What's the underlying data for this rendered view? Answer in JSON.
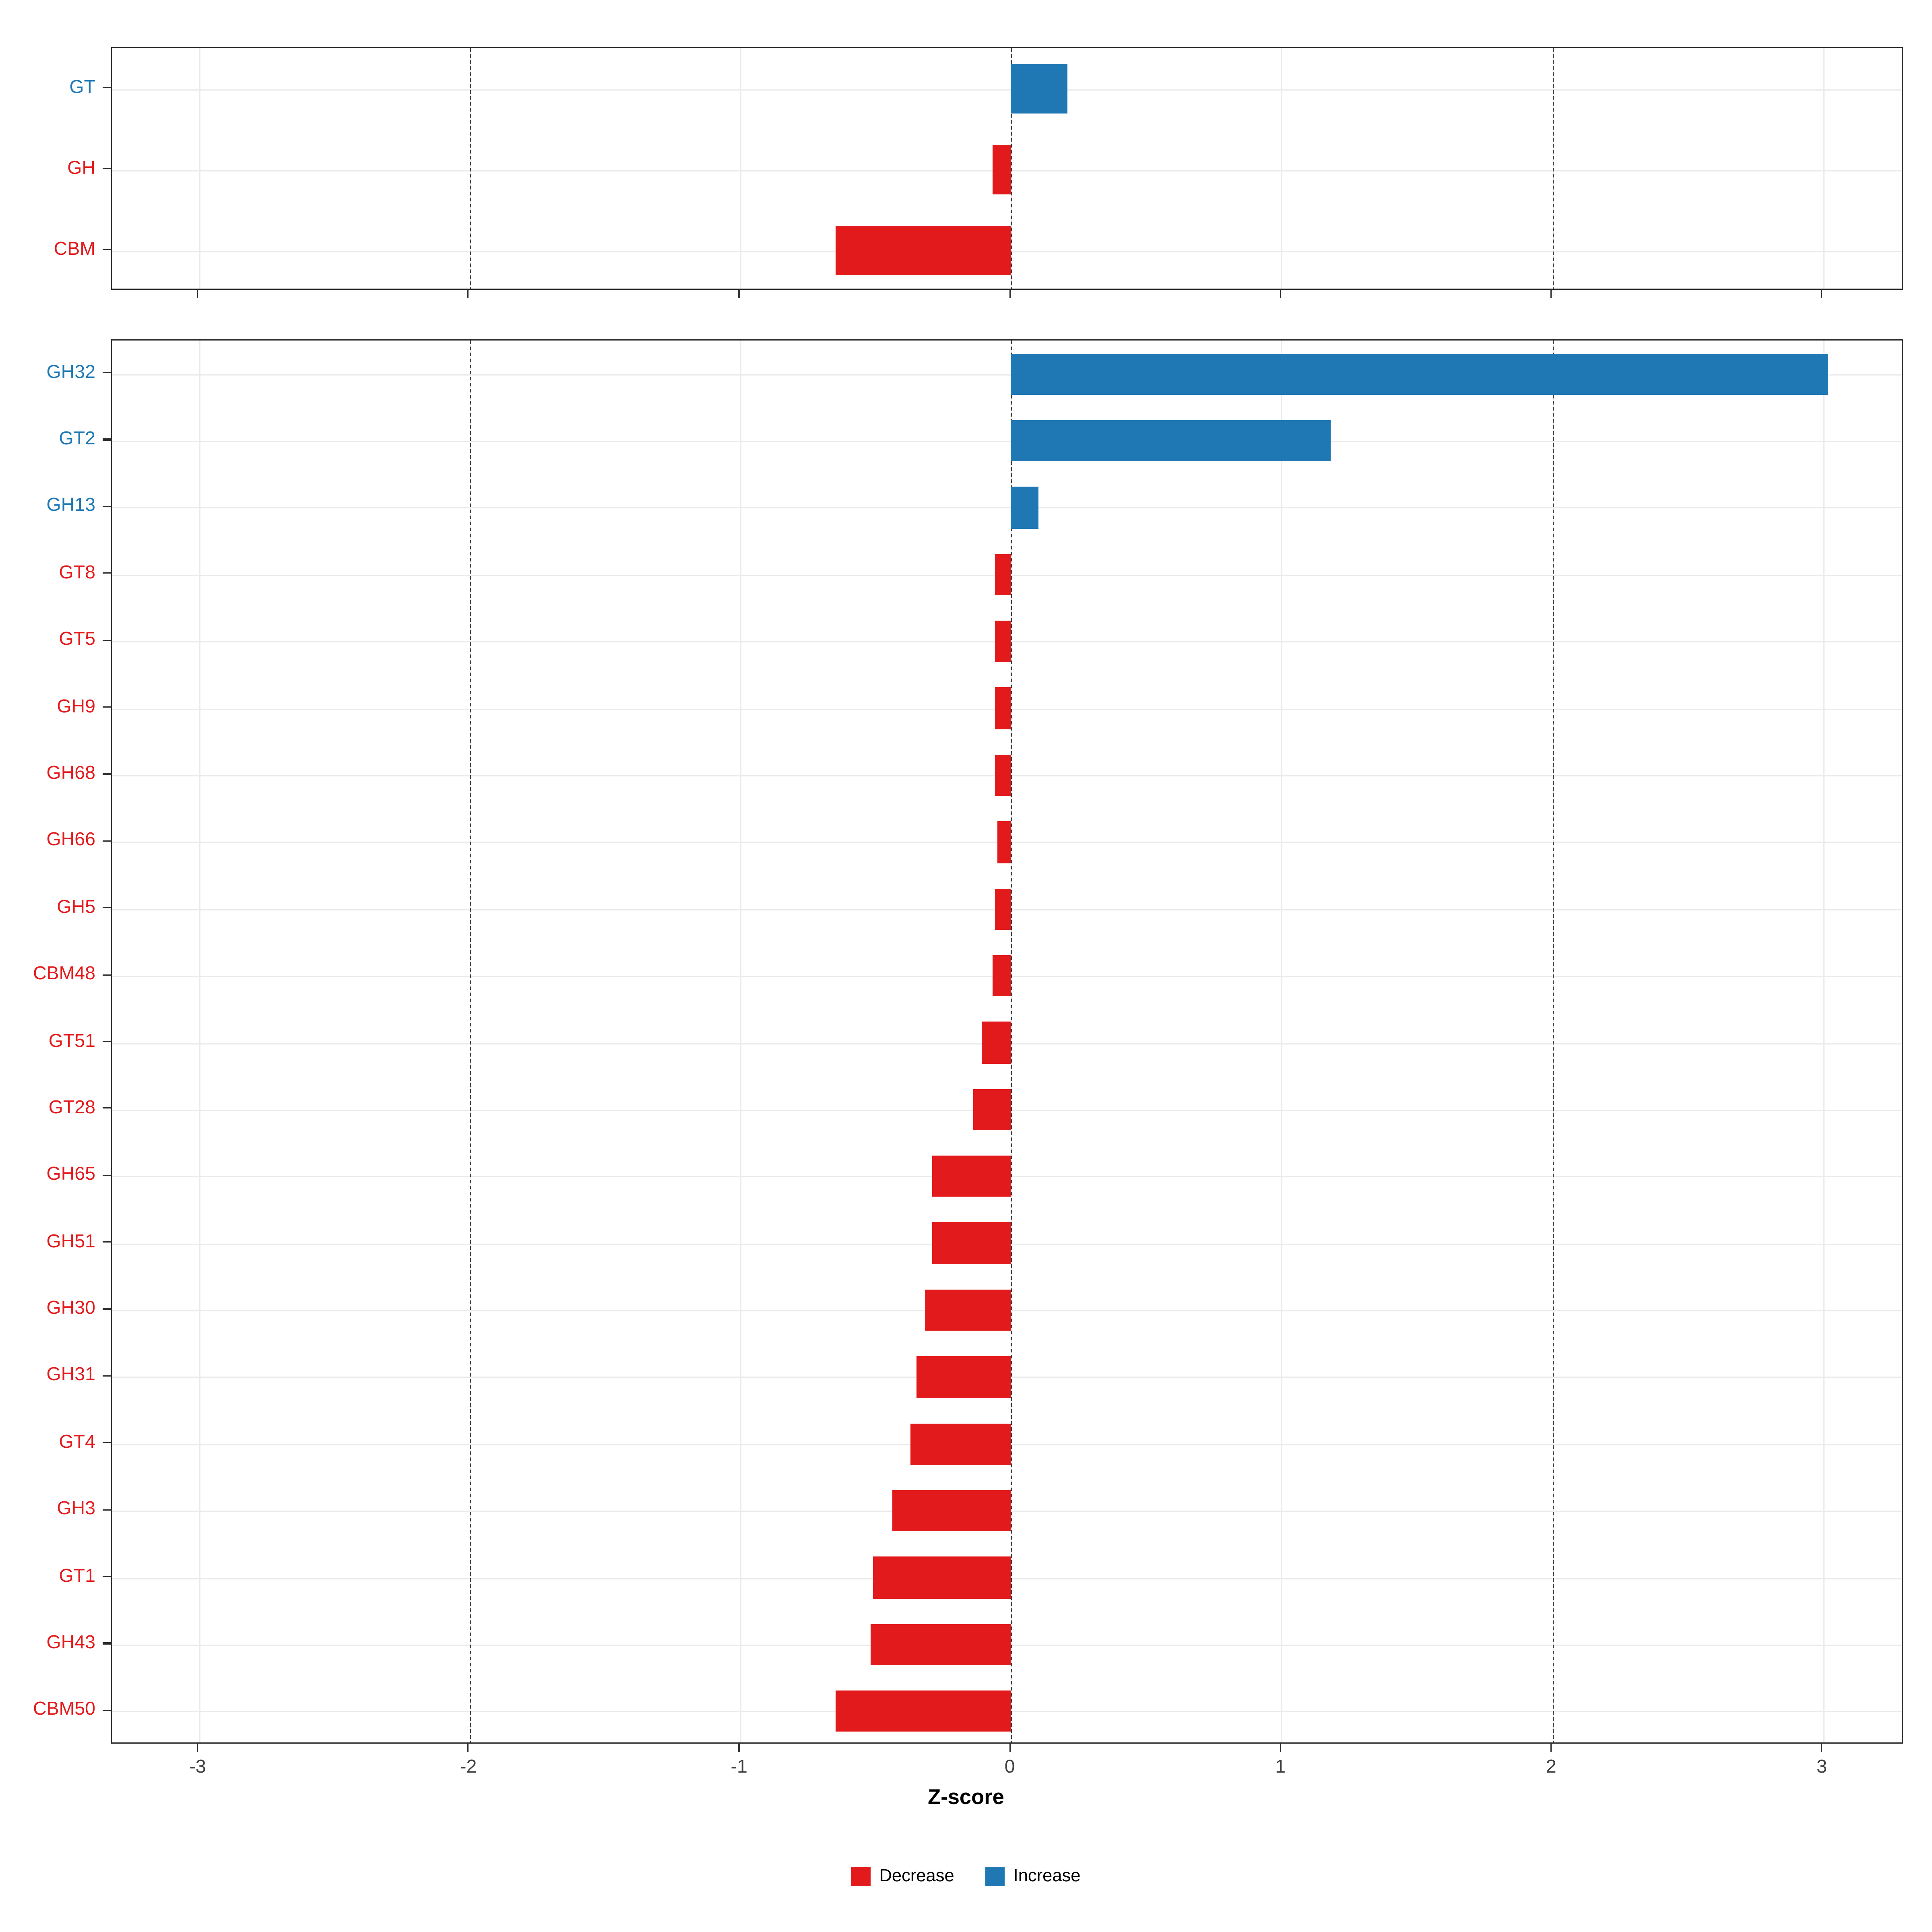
{
  "axis": {
    "label": "Z-score",
    "ticks": [
      "-3",
      "-2",
      "-1",
      "0",
      "1",
      "2",
      "3"
    ]
  },
  "legend": [
    {
      "label": "Decrease",
      "color": "#E31A1C"
    },
    {
      "label": "Increase",
      "color": "#1F78B4"
    }
  ],
  "colors": {
    "increase": "#1F78B4",
    "decrease": "#E31A1C",
    "panel_border": "#2b2b2b",
    "dashed_line": "#3c3c3c",
    "gridline": "#ebebeb"
  },
  "chart_data": {
    "type": "bar",
    "orientation": "horizontal",
    "xlabel": "Z-score",
    "xlim": [
      -3.32,
      3.3
    ],
    "xticks": [
      -3,
      -2,
      -1,
      0,
      1,
      2,
      3
    ],
    "dashed_vlines": [
      -2,
      0,
      2
    ],
    "legend": [
      "Decrease",
      "Increase"
    ],
    "panels": [
      {
        "name": "cazyme-class-summary",
        "categories": [
          "GT",
          "GH",
          "CBM"
        ],
        "values": [
          0.21,
          -0.07,
          -0.65
        ]
      },
      {
        "name": "cazyme-family-detail",
        "categories": [
          "GH32",
          "GT2",
          "GH13",
          "GT8",
          "GT5",
          "GH9",
          "GH68",
          "GH66",
          "GH5",
          "CBM48",
          "GT51",
          "GT28",
          "GH65",
          "GH51",
          "GH30",
          "GH31",
          "GT4",
          "GH3",
          "GT1",
          "GH43",
          "CBM50"
        ],
        "values": [
          3.02,
          1.18,
          0.1,
          -0.06,
          -0.06,
          -0.06,
          -0.06,
          -0.05,
          -0.06,
          -0.07,
          -0.11,
          -0.14,
          -0.29,
          -0.29,
          -0.32,
          -0.35,
          -0.37,
          -0.44,
          -0.51,
          -0.52,
          -0.65
        ]
      }
    ]
  }
}
